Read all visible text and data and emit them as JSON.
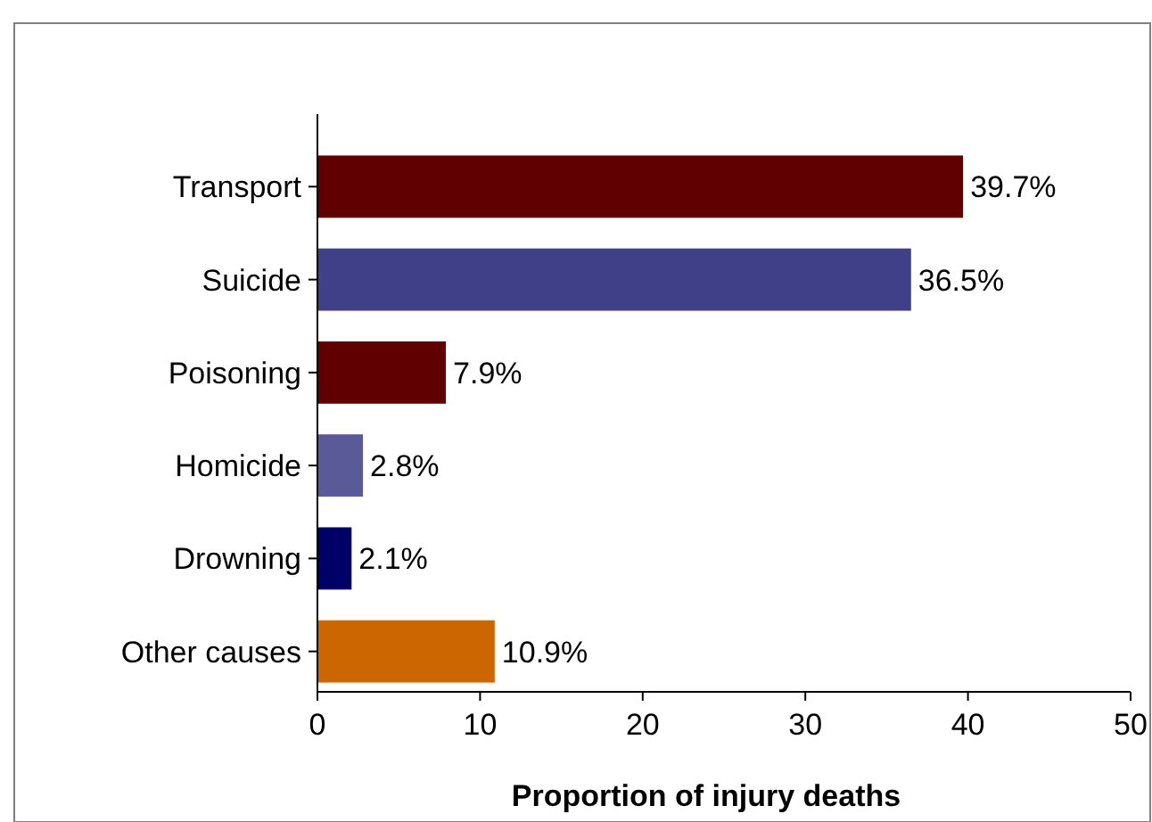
{
  "chart_data": {
    "type": "bar",
    "orientation": "horizontal",
    "xlabel": "Proportion of injury deaths",
    "categories": [
      "Transport",
      "Suicide",
      "Poisoning",
      "Homicide",
      "Drowning",
      "Other causes"
    ],
    "values": [
      39.7,
      36.5,
      7.9,
      2.8,
      2.1,
      10.9
    ],
    "colors": [
      "#600000",
      "#404088",
      "#600000",
      "#5a5a99",
      "#000066",
      "#cc6600"
    ],
    "value_labels": [
      "39.7%",
      "36.5%",
      "7.9%",
      "2.8%",
      "2.1%",
      "10.9%"
    ],
    "xlim": [
      0,
      50
    ],
    "xticks": [
      0,
      10,
      20,
      30,
      40,
      50
    ],
    "grid": false
  }
}
